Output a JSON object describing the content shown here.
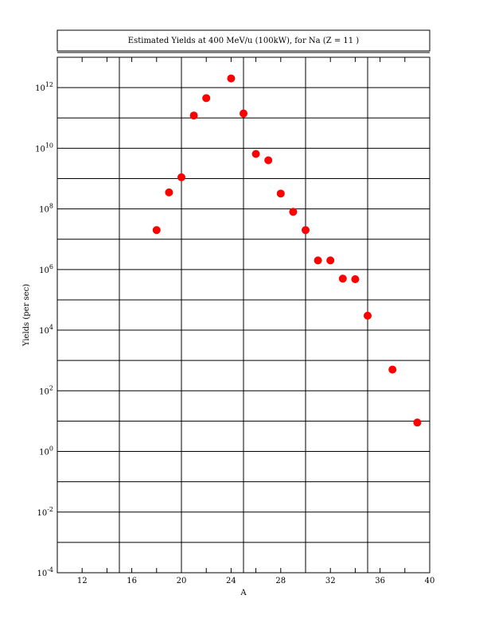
{
  "chart_data": {
    "type": "scatter",
    "title": "Estimated Yields at 400 MeV/u (100kW), for Na (Z = 11 )",
    "xlabel": "A",
    "ylabel": "Yields (per sec)",
    "xlim": [
      10,
      40
    ],
    "ylim_log10": [
      -4,
      13
    ],
    "y_scale": "log",
    "grid": true,
    "x_ticks": [
      12,
      16,
      20,
      24,
      28,
      32,
      36,
      40
    ],
    "y_tick_exponents": [
      -4,
      -2,
      0,
      2,
      4,
      6,
      8,
      10,
      12
    ],
    "marker_color": "#ff0000",
    "points": [
      {
        "x": 18,
        "y": 20000000.0
      },
      {
        "x": 19,
        "y": 350000000.0
      },
      {
        "x": 20,
        "y": 1100000000.0
      },
      {
        "x": 21,
        "y": 120000000000.0
      },
      {
        "x": 22,
        "y": 450000000000.0
      },
      {
        "x": 24,
        "y": 2000000000000.0
      },
      {
        "x": 25,
        "y": 140000000000.0
      },
      {
        "x": 26,
        "y": 6500000000.0
      },
      {
        "x": 27,
        "y": 4000000000.0
      },
      {
        "x": 28,
        "y": 320000000.0
      },
      {
        "x": 29,
        "y": 80000000.0
      },
      {
        "x": 30,
        "y": 20000000.0
      },
      {
        "x": 31,
        "y": 2000000.0
      },
      {
        "x": 32,
        "y": 2000000.0
      },
      {
        "x": 33,
        "y": 500000.0
      },
      {
        "x": 34,
        "y": 480000.0
      },
      {
        "x": 35,
        "y": 30000.0
      },
      {
        "x": 37,
        "y": 500
      },
      {
        "x": 39,
        "y": 9
      }
    ]
  }
}
